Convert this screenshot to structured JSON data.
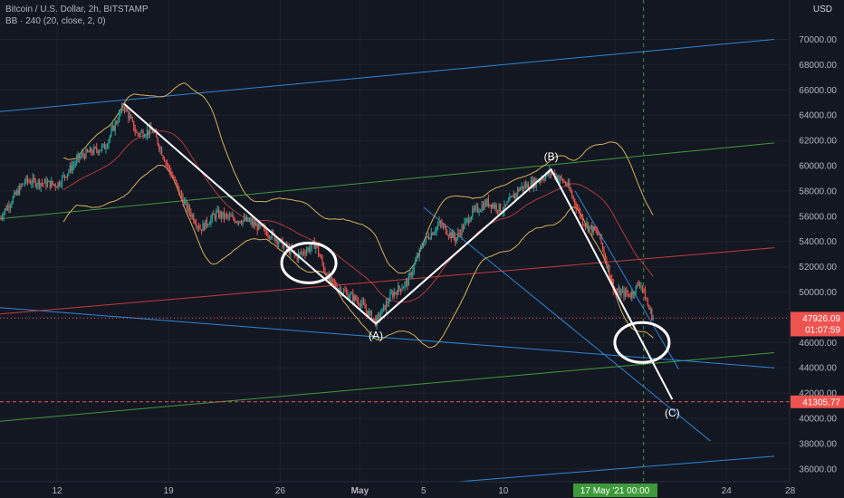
{
  "header": {
    "symbol_title": "Bitcoin / U.S. Dollar, 2h, BITSTAMP",
    "indicator": "BB · 240 (20, close, 2, 0)",
    "currency": "USD"
  },
  "colors": {
    "background": "#131722",
    "candle_up": "#26a69a",
    "candle_down": "#ef5350",
    "bb_band": "#d6b056",
    "bb_basis": "#b23a38",
    "blue_line": "#2c86d6",
    "green_line": "#3d9a3a",
    "red_line": "#c43b3b",
    "wave": "#ffffff"
  },
  "chart_data": {
    "type": "candlestick",
    "title": "Bitcoin / U.S. Dollar, 2h, BITSTAMP",
    "indicator": "BB · 240 (20, close, 2, 0)",
    "y_axis": {
      "unit": "USD",
      "ylim": [
        34600,
        72000
      ],
      "ticks": [
        36000,
        38000,
        40000,
        42000,
        44000,
        46000,
        48000,
        50000,
        52000,
        54000,
        56000,
        58000,
        60000,
        62000,
        64000,
        66000,
        68000,
        70000
      ],
      "tick_labels": [
        "36000.00",
        "38000.00",
        "40000.00",
        "42000.00",
        "44000.00",
        "46000.00",
        "48000.00",
        "50000.00",
        "52000.00",
        "54000.00",
        "56000.00",
        "58000.00",
        "60000.00",
        "62000.00",
        "64000.00",
        "66000.00",
        "68000.00",
        "70000.00"
      ]
    },
    "x_axis": {
      "range_days": [
        0,
        56
      ],
      "tick_labels": [
        "12",
        "19",
        "26",
        "May",
        "5",
        "10",
        "17 May '21  00:00",
        "24",
        "28"
      ],
      "tick_days": [
        0,
        7,
        14,
        19,
        23,
        28,
        35,
        42,
        46
      ]
    },
    "price_line": {
      "value": 47926.09,
      "label": "47926.09",
      "countdown": "01:07:59"
    },
    "marked_level": {
      "value": 41305.77,
      "label": "41305.77"
    },
    "wave_points": [
      {
        "label": "",
        "day": 4.2,
        "price": 64900
      },
      {
        "label": "(A)",
        "day": 20.0,
        "price": 47500
      },
      {
        "label": "(B)",
        "day": 31.0,
        "price": 59700
      },
      {
        "label": "(C)",
        "day": 38.6,
        "price": 41500
      }
    ],
    "trend_lines": [
      {
        "color_key": "blue_line",
        "p1": {
          "day": -6,
          "price": 64000
        },
        "p2": {
          "day": 45,
          "price": 70000
        }
      },
      {
        "color_key": "green_line",
        "p1": {
          "day": -6,
          "price": 55500
        },
        "p2": {
          "day": 45,
          "price": 61800
        }
      },
      {
        "color_key": "green_line",
        "p1": {
          "day": -6,
          "price": 39500
        },
        "p2": {
          "day": 45,
          "price": 45200
        }
      },
      {
        "color_key": "blue_line",
        "p1": {
          "day": -6,
          "price": 49000
        },
        "p2": {
          "day": 45,
          "price": 44000
        }
      },
      {
        "color_key": "red_line",
        "p1": {
          "day": -6,
          "price": 48000
        },
        "p2": {
          "day": 45,
          "price": 53500
        }
      },
      {
        "color_key": "blue_line",
        "p1": {
          "day": 19.5,
          "price": 34400
        },
        "p2": {
          "day": 45,
          "price": 37000
        }
      },
      {
        "color_key": "blue_line",
        "p1": {
          "day": 23.0,
          "price": 56700
        },
        "p2": {
          "day": 41.0,
          "price": 38200
        }
      },
      {
        "color_key": "blue_line",
        "p1": {
          "day": 32.5,
          "price": 58000
        },
        "p2": {
          "day": 39.0,
          "price": 43900
        }
      }
    ],
    "circles": [
      {
        "day": 15.8,
        "price": 52300
      },
      {
        "day": 36.7,
        "price": 46000
      }
    ],
    "crosshair_day": 36.8
  }
}
